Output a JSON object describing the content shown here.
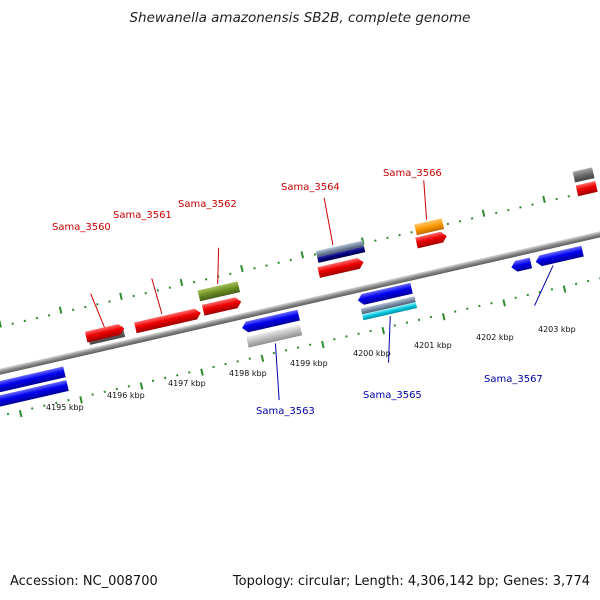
{
  "title": "Shewanella amazonensis SB2B, complete genome",
  "accession": "Accession: NC_008700",
  "topology": "Topology: circular; Length: 4,306,142 bp; Genes: 3,774",
  "colors": {
    "backbone": "#8c8c8c",
    "tick": "#2e8b2e",
    "top_label": "#cc0000",
    "bottom_label": "#0000aa"
  },
  "ruler_labels": [
    "4195 kbp",
    "4196 kbp",
    "4197 kbp",
    "4198 kbp",
    "4199 kbp",
    "4200 kbp",
    "4201 kbp",
    "4202 kbp",
    "4203 kbp"
  ],
  "gene_labels_top": [
    "Sama_3560",
    "Sama_3561",
    "Sama_3562",
    "Sama_3564",
    "Sama_3566"
  ],
  "gene_labels_bottom": [
    "Sama_3563",
    "Sama_3565",
    "Sama_3567"
  ]
}
